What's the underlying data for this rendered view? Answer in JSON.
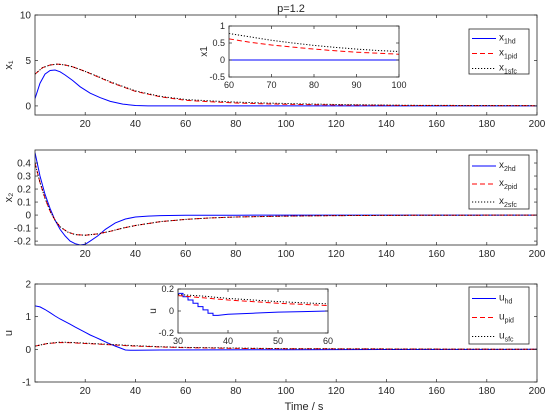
{
  "figure_title": "p=1.2",
  "xlabel": "Time  / s",
  "colors": {
    "hd": "#0000ff",
    "pid": "#ff0000",
    "sfc": "#000000",
    "axis": "#262626"
  },
  "chart_data": [
    {
      "type": "line",
      "id": "x1",
      "ylabel": "x₁",
      "xlim": [
        0,
        200
      ],
      "ylim": [
        -1,
        10
      ],
      "xticks": [
        20,
        40,
        60,
        80,
        100,
        120,
        140,
        160,
        180,
        200
      ],
      "yticks": [
        0,
        5,
        10
      ],
      "legend": [
        "x1hd",
        "x1pid",
        "x1sfc"
      ],
      "legend_placement": "top-right",
      "series": [
        {
          "name": "x1hd",
          "style": "solid",
          "x": [
            0,
            2,
            4,
            6,
            8,
            10,
            12,
            15,
            18,
            22,
            26,
            30,
            35,
            40,
            45,
            50,
            60,
            80,
            100,
            150,
            200
          ],
          "y": [
            0.8,
            2.5,
            3.5,
            3.9,
            3.95,
            3.75,
            3.4,
            2.8,
            2.1,
            1.4,
            0.9,
            0.5,
            0.2,
            0.05,
            0.0,
            0.0,
            0.0,
            0.0,
            0.0,
            0.0,
            0.0
          ]
        },
        {
          "name": "x1pid",
          "style": "dashed",
          "x": [
            0,
            3,
            6,
            9,
            12,
            15,
            20,
            25,
            30,
            35,
            40,
            50,
            60,
            70,
            80,
            90,
            100,
            120,
            150,
            200
          ],
          "y": [
            3.5,
            4.2,
            4.5,
            4.6,
            4.5,
            4.3,
            3.8,
            3.2,
            2.6,
            2.1,
            1.6,
            1.0,
            0.62,
            0.45,
            0.32,
            0.24,
            0.18,
            0.1,
            0.05,
            0.02
          ]
        },
        {
          "name": "x1sfc",
          "style": "dotted",
          "x": [
            0,
            3,
            6,
            9,
            12,
            15,
            20,
            25,
            30,
            35,
            40,
            50,
            60,
            70,
            80,
            90,
            100,
            120,
            150,
            200
          ],
          "y": [
            3.5,
            4.2,
            4.5,
            4.6,
            4.5,
            4.3,
            3.8,
            3.25,
            2.65,
            2.15,
            1.65,
            1.05,
            0.7,
            0.55,
            0.42,
            0.33,
            0.27,
            0.16,
            0.07,
            0.02
          ]
        }
      ]
    },
    {
      "type": "line",
      "id": "x1-inset",
      "ylabel": "x1",
      "xlim": [
        60,
        100
      ],
      "ylim": [
        -0.5,
        1
      ],
      "xticks": [
        60,
        70,
        80,
        90,
        100
      ],
      "yticks": [
        -0.5,
        0,
        0.5,
        1
      ],
      "series": [
        {
          "name": "x1hd",
          "style": "solid",
          "x": [
            60,
            70,
            80,
            90,
            100
          ],
          "y": [
            0.0,
            0.0,
            0.0,
            0.0,
            0.0
          ]
        },
        {
          "name": "x1pid",
          "style": "dashed",
          "x": [
            60,
            65,
            70,
            75,
            80,
            85,
            90,
            95,
            100
          ],
          "y": [
            0.62,
            0.52,
            0.44,
            0.38,
            0.32,
            0.27,
            0.23,
            0.2,
            0.17
          ]
        },
        {
          "name": "x1sfc",
          "style": "dotted",
          "x": [
            60,
            65,
            70,
            75,
            80,
            85,
            90,
            95,
            100
          ],
          "y": [
            0.78,
            0.68,
            0.58,
            0.5,
            0.43,
            0.37,
            0.32,
            0.28,
            0.25
          ]
        }
      ]
    },
    {
      "type": "line",
      "id": "x2",
      "ylabel": "x₂",
      "xlim": [
        0,
        200
      ],
      "ylim": [
        -0.23,
        0.5
      ],
      "xticks": [
        20,
        40,
        60,
        80,
        100,
        120,
        140,
        160,
        180,
        200
      ],
      "yticks": [
        -0.2,
        -0.1,
        0,
        0.1,
        0.2,
        0.3,
        0.4
      ],
      "legend": [
        "x2hd",
        "x2pid",
        "x2sfc"
      ],
      "legend_placement": "top-right",
      "series": [
        {
          "name": "x2hd",
          "style": "solid",
          "x": [
            0,
            2,
            4,
            6,
            8,
            10,
            12,
            14,
            16,
            18,
            20,
            22,
            25,
            28,
            32,
            36,
            40,
            45,
            50,
            60,
            80,
            100,
            200
          ],
          "y": [
            0.48,
            0.3,
            0.16,
            0.05,
            -0.04,
            -0.11,
            -0.16,
            -0.2,
            -0.22,
            -0.23,
            -0.225,
            -0.2,
            -0.16,
            -0.11,
            -0.06,
            -0.03,
            -0.015,
            -0.008,
            -0.004,
            -0.002,
            -0.001,
            0.0,
            0.0
          ]
        },
        {
          "name": "x2pid",
          "style": "dashed",
          "x": [
            0,
            2,
            4,
            6,
            8,
            10,
            13,
            16,
            20,
            25,
            30,
            35,
            40,
            50,
            60,
            70,
            80,
            100,
            120,
            150,
            200
          ],
          "y": [
            0.4,
            0.25,
            0.13,
            0.03,
            -0.04,
            -0.09,
            -0.13,
            -0.15,
            -0.155,
            -0.145,
            -0.125,
            -0.1,
            -0.08,
            -0.05,
            -0.033,
            -0.022,
            -0.015,
            -0.008,
            -0.004,
            -0.002,
            0.0
          ]
        },
        {
          "name": "x2sfc",
          "style": "dotted",
          "x": [
            0,
            2,
            4,
            6,
            8,
            10,
            13,
            16,
            20,
            25,
            30,
            35,
            40,
            50,
            60,
            70,
            80,
            100,
            120,
            150,
            200
          ],
          "y": [
            0.4,
            0.25,
            0.13,
            0.03,
            -0.04,
            -0.09,
            -0.13,
            -0.15,
            -0.155,
            -0.145,
            -0.125,
            -0.1,
            -0.08,
            -0.05,
            -0.033,
            -0.022,
            -0.015,
            -0.008,
            -0.004,
            -0.002,
            0.0
          ]
        }
      ]
    },
    {
      "type": "line",
      "id": "u",
      "ylabel": "u",
      "xlim": [
        0,
        200
      ],
      "ylim": [
        -1,
        2
      ],
      "xticks": [
        20,
        40,
        60,
        80,
        100,
        120,
        140,
        160,
        180,
        200
      ],
      "yticks": [
        -1,
        0,
        1,
        2
      ],
      "legend": [
        "uhd",
        "upid",
        "usfc"
      ],
      "legend_placement": "top-right",
      "series": [
        {
          "name": "uhd",
          "style": "solid",
          "x": [
            0,
            2,
            4,
            6,
            8,
            10,
            12,
            14,
            16,
            18,
            20,
            22,
            24,
            26,
            28,
            30,
            32,
            34,
            36,
            38,
            40,
            50,
            100,
            200
          ],
          "y": [
            1.33,
            1.3,
            1.22,
            1.12,
            1.02,
            0.93,
            0.85,
            0.77,
            0.68,
            0.6,
            0.52,
            0.44,
            0.37,
            0.3,
            0.23,
            0.16,
            0.1,
            0.04,
            -0.02,
            -0.03,
            -0.03,
            -0.02,
            -0.01,
            0.0
          ]
        },
        {
          "name": "upid",
          "style": "dashed",
          "x": [
            0,
            5,
            10,
            15,
            20,
            25,
            30,
            40,
            50,
            60,
            80,
            100,
            150,
            200
          ],
          "y": [
            0.1,
            0.18,
            0.21,
            0.2,
            0.18,
            0.16,
            0.14,
            0.1,
            0.07,
            0.05,
            0.03,
            0.02,
            0.01,
            0.0
          ]
        },
        {
          "name": "usfc",
          "style": "dotted",
          "x": [
            0,
            5,
            10,
            15,
            20,
            25,
            30,
            40,
            50,
            60,
            80,
            100,
            150,
            200
          ],
          "y": [
            0.1,
            0.18,
            0.22,
            0.21,
            0.19,
            0.17,
            0.15,
            0.11,
            0.08,
            0.06,
            0.04,
            0.02,
            0.01,
            0.0
          ]
        }
      ]
    },
    {
      "type": "line",
      "id": "u-inset",
      "ylabel": "u",
      "xlim": [
        30,
        60
      ],
      "ylim": [
        -0.2,
        0.2
      ],
      "xticks": [
        30,
        40,
        50,
        60
      ],
      "yticks": [
        -0.2,
        0,
        0.2
      ],
      "series": [
        {
          "name": "uhd",
          "style": "solid",
          "x": [
            30,
            31,
            31,
            32,
            32,
            33,
            33,
            34,
            34,
            35,
            35,
            36,
            36,
            37,
            37,
            38,
            40,
            45,
            50,
            55,
            60
          ],
          "y": [
            0.16,
            0.16,
            0.13,
            0.13,
            0.1,
            0.1,
            0.07,
            0.07,
            0.04,
            0.04,
            0.01,
            0.01,
            -0.02,
            -0.02,
            -0.04,
            -0.04,
            -0.03,
            -0.02,
            -0.01,
            -0.005,
            0.0
          ]
        },
        {
          "name": "upid",
          "style": "dashed",
          "x": [
            30,
            35,
            40,
            45,
            50,
            55,
            60
          ],
          "y": [
            0.14,
            0.12,
            0.1,
            0.085,
            0.07,
            0.06,
            0.05
          ]
        },
        {
          "name": "usfc",
          "style": "dotted",
          "x": [
            30,
            35,
            40,
            45,
            50,
            55,
            60
          ],
          "y": [
            0.15,
            0.135,
            0.115,
            0.1,
            0.085,
            0.075,
            0.065
          ]
        }
      ]
    }
  ],
  "legends": [
    {
      "entries": [
        {
          "base": "x",
          "sub": "1hd"
        },
        {
          "base": "x",
          "sub": "1pid"
        },
        {
          "base": "x",
          "sub": "1sfc"
        }
      ]
    },
    {
      "entries": [
        {
          "base": "x",
          "sub": "2hd"
        },
        {
          "base": "x",
          "sub": "2pid"
        },
        {
          "base": "x",
          "sub": "2sfc"
        }
      ]
    },
    {
      "entries": [
        {
          "base": "u",
          "sub": "hd"
        },
        {
          "base": "u",
          "sub": "pid"
        },
        {
          "base": "u",
          "sub": "sfc"
        }
      ]
    }
  ]
}
